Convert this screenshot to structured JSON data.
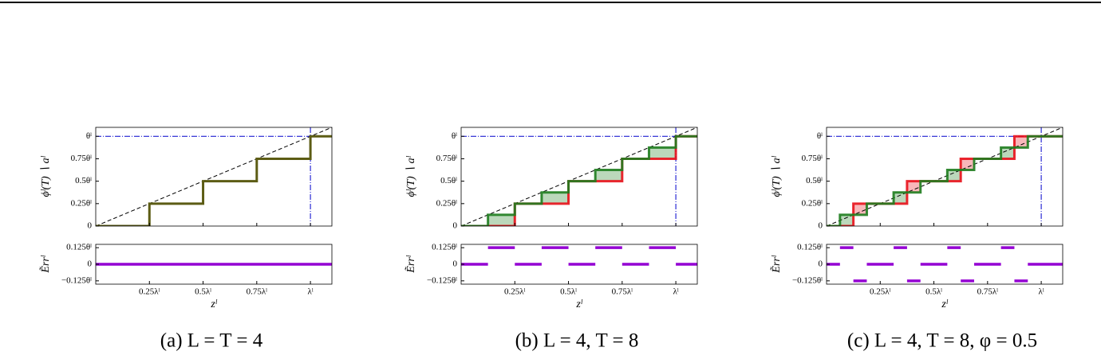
{
  "panels": [
    {
      "caption": "(a) L = T = 4",
      "xlabel": "zˡ",
      "xlim": [
        0,
        1.1
      ],
      "xticks": [
        {
          "value": 0.25,
          "label": "0.25λˡ"
        },
        {
          "value": 0.5,
          "label": "0.5λˡ"
        },
        {
          "value": 0.75,
          "label": "0.75λˡ"
        },
        {
          "value": 1,
          "label": "λˡ"
        }
      ],
      "top": {
        "ylabel": "ϕˡ(T) ∖ aˡ",
        "ylim": [
          0,
          1.1
        ],
        "yticks": [
          0,
          {
            "value": 0.25,
            "label": "0.25θˡ"
          },
          {
            "value": 0.5,
            "label": "0.5θˡ"
          },
          {
            "value": 0.75,
            "label": "0.75θˡ"
          },
          {
            "value": 1,
            "label": "θˡ"
          }
        ],
        "reference_line": {
          "x": [
            0,
            1.1
          ],
          "values": [
            0,
            1.1
          ],
          "color": "#000000"
        },
        "hline": 1,
        "vline": 1,
        "guide_color": "#0000cc",
        "series": [
          {
            "color": "#5c5c14",
            "x": [
              0,
              0.25,
              0.25,
              0.5,
              0.5,
              0.75,
              0.75,
              1,
              1,
              1.1
            ],
            "values": [
              0,
              0,
              0.25,
              0.25,
              0.5,
              0.5,
              0.75,
              0.75,
              1,
              1
            ]
          }
        ]
      },
      "bottom": {
        "ylabel": "Ẽrrˡ",
        "ylim": [
          -0.15,
          0.15
        ],
        "color": "#9400d3",
        "yticks": [
          {
            "value": 0.125,
            "label": "0.125θˡ"
          },
          0,
          {
            "value": -0.125,
            "label": "−0.125θˡ"
          }
        ],
        "segments": [
          {
            "x": [
              0,
              1.1
            ],
            "value": 0
          }
        ]
      }
    },
    {
      "caption": "(b) L = 4, T = 8",
      "xlabel": "zˡ",
      "xlim": [
        0,
        1.1
      ],
      "xticks": [
        {
          "value": 0.25,
          "label": "0.25λˡ"
        },
        {
          "value": 0.5,
          "label": "0.5λˡ"
        },
        {
          "value": 0.75,
          "label": "0.75λˡ"
        },
        {
          "value": 1,
          "label": "λˡ"
        }
      ],
      "top": {
        "ylabel": "ϕˡ(T) ∖ aˡ",
        "ylim": [
          0,
          1.1
        ],
        "yticks": [
          0,
          {
            "value": 0.25,
            "label": "0.25θˡ"
          },
          {
            "value": 0.5,
            "label": "0.5θˡ"
          },
          {
            "value": 0.75,
            "label": "0.75θˡ"
          },
          {
            "value": 1,
            "label": "θˡ"
          }
        ],
        "reference_line": {
          "x": [
            0,
            1.1
          ],
          "values": [
            0,
            1.1
          ],
          "color": "#000000"
        },
        "hline": 1,
        "vline": 1,
        "guide_color": "#0000cc",
        "series": [
          {
            "color": "#e8101a",
            "x": [
              0,
              0.25,
              0.25,
              0.5,
              0.5,
              0.75,
              0.75,
              1,
              1,
              1.1
            ],
            "values": [
              0,
              0,
              0.25,
              0.25,
              0.5,
              0.5,
              0.75,
              0.75,
              1,
              1
            ]
          },
          {
            "color": "#1e7d1e",
            "x": [
              0,
              0.125,
              0.125,
              0.25,
              0.25,
              0.375,
              0.375,
              0.5,
              0.5,
              0.625,
              0.625,
              0.75,
              0.75,
              0.875,
              0.875,
              1,
              1,
              1.1
            ],
            "values": [
              0,
              0,
              0.125,
              0.125,
              0.25,
              0.25,
              0.375,
              0.375,
              0.5,
              0.5,
              0.625,
              0.625,
              0.75,
              0.75,
              0.875,
              0.875,
              1,
              1
            ]
          }
        ]
      },
      "bottom": {
        "ylabel": "Ẽrrˡ",
        "ylim": [
          -0.15,
          0.15
        ],
        "color": "#9400d3",
        "yticks": [
          {
            "value": 0.125,
            "label": "0.125θˡ"
          },
          0,
          {
            "value": -0.125,
            "label": "−0.125θˡ"
          }
        ],
        "segments": [
          {
            "x": [
              0,
              0.125
            ],
            "value": 0
          },
          {
            "x": [
              0.125,
              0.25
            ],
            "value": 0.125
          },
          {
            "x": [
              0.25,
              0.375
            ],
            "value": 0
          },
          {
            "x": [
              0.375,
              0.5
            ],
            "value": 0.125
          },
          {
            "x": [
              0.5,
              0.625
            ],
            "value": 0
          },
          {
            "x": [
              0.625,
              0.75
            ],
            "value": 0.125
          },
          {
            "x": [
              0.75,
              0.875
            ],
            "value": 0
          },
          {
            "x": [
              0.875,
              1
            ],
            "value": 0.125
          },
          {
            "x": [
              1,
              1.1
            ],
            "value": 0
          }
        ]
      }
    },
    {
      "caption": "(c) L = 4, T = 8, φ = 0.5",
      "xlabel": "zˡ",
      "xlim": [
        0,
        1.1
      ],
      "xticks": [
        {
          "value": 0.25,
          "label": "0.25λˡ"
        },
        {
          "value": 0.5,
          "label": "0.5λˡ"
        },
        {
          "value": 0.75,
          "label": "0.75λˡ"
        },
        {
          "value": 1,
          "label": "λˡ"
        }
      ],
      "top": {
        "ylabel": "ϕˡ(T) ∖ aˡ",
        "ylim": [
          0,
          1.1
        ],
        "yticks": [
          0,
          {
            "value": 0.25,
            "label": "0.25θˡ"
          },
          {
            "value": 0.5,
            "label": "0.5θˡ"
          },
          {
            "value": 0.75,
            "label": "0.75θˡ"
          },
          {
            "value": 1,
            "label": "θˡ"
          }
        ],
        "reference_line": {
          "x": [
            0,
            1.1
          ],
          "values": [
            0,
            1.1
          ],
          "color": "#000000"
        },
        "hline": 1,
        "vline": 1,
        "guide_color": "#0000cc",
        "series": [
          {
            "color": "#e8101a",
            "x": [
              0,
              0.125,
              0.125,
              0.375,
              0.375,
              0.625,
              0.625,
              0.875,
              0.875,
              1.1
            ],
            "values": [
              0,
              0,
              0.25,
              0.25,
              0.5,
              0.5,
              0.75,
              0.75,
              1,
              1
            ]
          },
          {
            "color": "#1e7d1e",
            "x": [
              0,
              0.0625,
              0.0625,
              0.1875,
              0.1875,
              0.3125,
              0.3125,
              0.4375,
              0.4375,
              0.5625,
              0.5625,
              0.6875,
              0.6875,
              0.8125,
              0.8125,
              0.9375,
              0.9375,
              1.1
            ],
            "values": [
              0,
              0,
              0.125,
              0.125,
              0.25,
              0.25,
              0.375,
              0.375,
              0.5,
              0.5,
              0.625,
              0.625,
              0.75,
              0.75,
              0.875,
              0.875,
              1,
              1
            ]
          }
        ]
      },
      "bottom": {
        "ylabel": "Ẽrrˡ",
        "ylim": [
          -0.15,
          0.15
        ],
        "color": "#9400d3",
        "yticks": [
          {
            "value": 0.125,
            "label": "0.125θˡ"
          },
          0,
          {
            "value": -0.125,
            "label": "−0.125θˡ"
          }
        ],
        "segments": [
          {
            "x": [
              0,
              0.0625
            ],
            "value": 0
          },
          {
            "x": [
              0.0625,
              0.125
            ],
            "value": 0.125
          },
          {
            "x": [
              0.125,
              0.1875
            ],
            "value": -0.125
          },
          {
            "x": [
              0.1875,
              0.3125
            ],
            "value": 0
          },
          {
            "x": [
              0.3125,
              0.375
            ],
            "value": 0.125
          },
          {
            "x": [
              0.375,
              0.4375
            ],
            "value": -0.125
          },
          {
            "x": [
              0.4375,
              0.5625
            ],
            "value": 0
          },
          {
            "x": [
              0.5625,
              0.625
            ],
            "value": 0.125
          },
          {
            "x": [
              0.625,
              0.6875
            ],
            "value": -0.125
          },
          {
            "x": [
              0.6875,
              0.8125
            ],
            "value": 0
          },
          {
            "x": [
              0.8125,
              0.875
            ],
            "value": 0.125
          },
          {
            "x": [
              0.875,
              0.9375
            ],
            "value": -0.125
          },
          {
            "x": [
              0.9375,
              1.1
            ],
            "value": 0
          }
        ]
      }
    }
  ]
}
